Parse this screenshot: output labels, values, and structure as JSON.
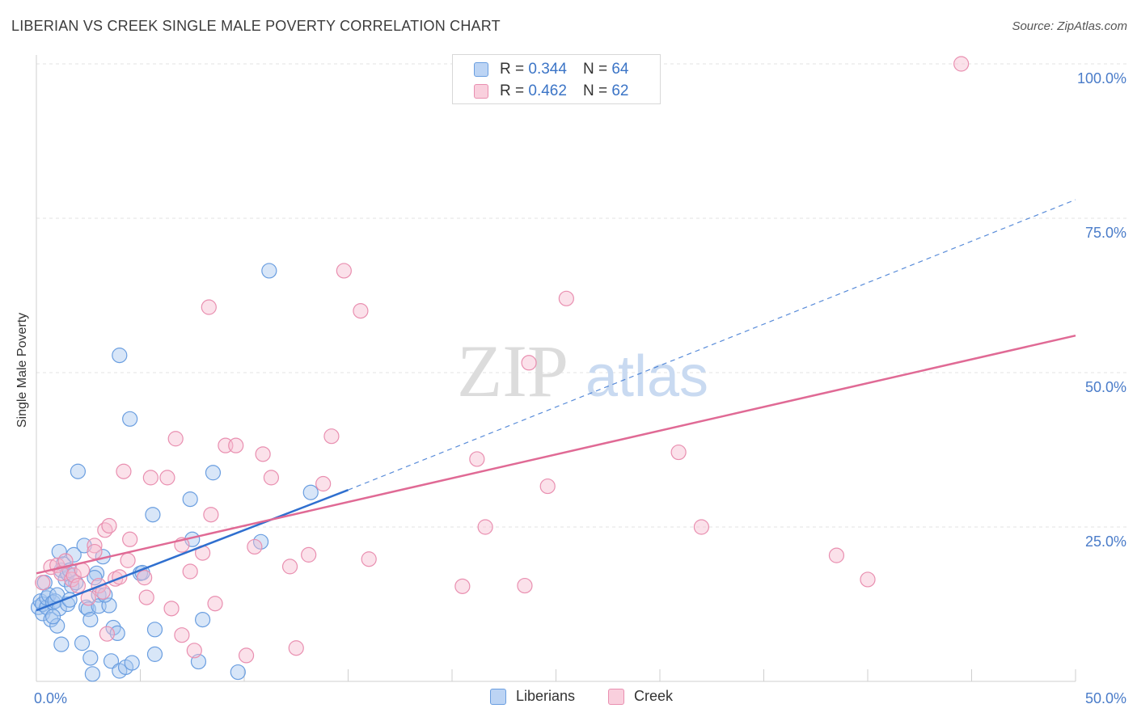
{
  "title": "LIBERIAN VS CREEK SINGLE MALE POVERTY CORRELATION CHART",
  "source": "Source: ZipAtlas.com",
  "watermark": {
    "zip": "ZIP",
    "atlas": "atlas"
  },
  "legend_top": [
    {
      "r_label": "R =",
      "r_value": "0.344",
      "n_label": "N =",
      "n_value": "64"
    },
    {
      "r_label": "R =",
      "r_value": "0.462",
      "n_label": "N =",
      "n_value": "62"
    }
  ],
  "colors": {
    "blue_fill": "#a9c8f0",
    "blue_stroke": "#6a9ee0",
    "blue_line": "#2f6fcf",
    "pink_fill": "#f6bcd0",
    "pink_stroke": "#e98fb0",
    "pink_line": "#e06a95",
    "axis_label": "#4a7cc9",
    "grid": "#e3e3e3"
  },
  "chart_data": {
    "type": "scatter",
    "xlabel": "",
    "ylabel": "Single Male Poverty",
    "xlim": [
      0,
      50
    ],
    "ylim": [
      0,
      100
    ],
    "x_tick_labels": [
      "0.0%",
      "50.0%"
    ],
    "y_tick_labels": [
      "100.0%",
      "75.0%",
      "50.0%",
      "25.0%"
    ],
    "y_ticks": [
      100,
      75,
      50,
      25
    ],
    "grid": true,
    "legend_position": "bottom-center",
    "series": [
      {
        "name": "Liberians",
        "color": "#a9c8f0",
        "points": [
          [
            0.1,
            12.0
          ],
          [
            0.2,
            13.0
          ],
          [
            0.3,
            11.0
          ],
          [
            0.3,
            12.5
          ],
          [
            0.4,
            16.0
          ],
          [
            0.5,
            12.0
          ],
          [
            0.5,
            13.5
          ],
          [
            0.6,
            14.0
          ],
          [
            0.7,
            10.0
          ],
          [
            0.8,
            12.8
          ],
          [
            0.9,
            13.0
          ],
          [
            1.0,
            9.0
          ],
          [
            1.0,
            14.0
          ],
          [
            1.1,
            11.8
          ],
          [
            1.1,
            21.0
          ],
          [
            1.2,
            6.0
          ],
          [
            1.2,
            18.0
          ],
          [
            1.3,
            19.0
          ],
          [
            1.4,
            16.5
          ],
          [
            1.5,
            12.5
          ],
          [
            1.5,
            17.5
          ],
          [
            1.6,
            18.0
          ],
          [
            1.7,
            15.5
          ],
          [
            1.8,
            20.5
          ],
          [
            1.9,
            16.0
          ],
          [
            2.0,
            34.0
          ],
          [
            2.2,
            6.2
          ],
          [
            2.3,
            22.0
          ],
          [
            2.4,
            12.0
          ],
          [
            2.5,
            11.7
          ],
          [
            2.6,
            10.0
          ],
          [
            2.6,
            3.8
          ],
          [
            2.7,
            1.2
          ],
          [
            2.9,
            17.5
          ],
          [
            3.0,
            14.0
          ],
          [
            3.0,
            12.2
          ],
          [
            3.2,
            20.2
          ],
          [
            3.5,
            12.3
          ],
          [
            3.6,
            3.3
          ],
          [
            3.7,
            8.7
          ],
          [
            3.9,
            7.8
          ],
          [
            4.0,
            52.8
          ],
          [
            4.0,
            1.7
          ],
          [
            4.3,
            2.3
          ],
          [
            4.5,
            42.5
          ],
          [
            4.6,
            3.0
          ],
          [
            5.0,
            17.5
          ],
          [
            5.1,
            17.6
          ],
          [
            5.6,
            27.0
          ],
          [
            5.7,
            8.4
          ],
          [
            5.7,
            4.4
          ],
          [
            7.4,
            29.5
          ],
          [
            7.5,
            23.0
          ],
          [
            7.8,
            3.2
          ],
          [
            8.0,
            10.0
          ],
          [
            8.5,
            33.8
          ],
          [
            9.7,
            1.5
          ],
          [
            10.8,
            22.6
          ],
          [
            11.2,
            66.5
          ],
          [
            13.2,
            30.6
          ],
          [
            0.8,
            10.5
          ],
          [
            1.6,
            13.2
          ],
          [
            2.8,
            16.8
          ],
          [
            3.3,
            14.0
          ]
        ]
      },
      {
        "name": "Creek",
        "color": "#f6bcd0",
        "points": [
          [
            0.3,
            16.0
          ],
          [
            0.7,
            18.5
          ],
          [
            1.0,
            18.8
          ],
          [
            1.2,
            17.5
          ],
          [
            1.4,
            19.5
          ],
          [
            1.7,
            16.5
          ],
          [
            1.8,
            17.2
          ],
          [
            2.0,
            15.5
          ],
          [
            2.2,
            18.0
          ],
          [
            2.8,
            22.0
          ],
          [
            2.8,
            21.0
          ],
          [
            3.0,
            15.5
          ],
          [
            3.2,
            14.5
          ],
          [
            3.3,
            24.5
          ],
          [
            3.4,
            7.7
          ],
          [
            3.5,
            25.2
          ],
          [
            3.8,
            16.6
          ],
          [
            4.0,
            16.9
          ],
          [
            4.2,
            34.0
          ],
          [
            4.4,
            19.6
          ],
          [
            4.5,
            23.0
          ],
          [
            5.2,
            16.8
          ],
          [
            5.3,
            13.6
          ],
          [
            5.5,
            33.0
          ],
          [
            6.3,
            33.0
          ],
          [
            6.5,
            11.8
          ],
          [
            6.7,
            39.3
          ],
          [
            7.0,
            22.1
          ],
          [
            7.0,
            7.5
          ],
          [
            7.4,
            17.8
          ],
          [
            7.6,
            5.0
          ],
          [
            8.0,
            20.8
          ],
          [
            8.3,
            60.6
          ],
          [
            8.4,
            27.0
          ],
          [
            8.6,
            12.6
          ],
          [
            9.1,
            38.2
          ],
          [
            9.6,
            38.2
          ],
          [
            10.1,
            4.2
          ],
          [
            10.5,
            21.8
          ],
          [
            10.9,
            36.8
          ],
          [
            11.3,
            33.0
          ],
          [
            12.2,
            18.6
          ],
          [
            12.5,
            5.4
          ],
          [
            13.1,
            20.5
          ],
          [
            13.8,
            32.0
          ],
          [
            14.2,
            39.7
          ],
          [
            14.8,
            66.5
          ],
          [
            15.6,
            60.0
          ],
          [
            16.0,
            19.8
          ],
          [
            20.5,
            15.4
          ],
          [
            21.2,
            36.0
          ],
          [
            21.6,
            25.0
          ],
          [
            23.5,
            15.5
          ],
          [
            23.7,
            51.6
          ],
          [
            24.6,
            31.6
          ],
          [
            25.5,
            62.0
          ],
          [
            30.9,
            37.1
          ],
          [
            32.0,
            25.0
          ],
          [
            38.5,
            20.4
          ],
          [
            40.0,
            16.5
          ],
          [
            44.5,
            100.0
          ],
          [
            2.5,
            13.5
          ]
        ]
      }
    ],
    "trend_lines": [
      {
        "series": "Liberians",
        "x": [
          0,
          15
        ],
        "y": [
          11.5,
          31.0
        ],
        "dashed_extension_to_x": 50,
        "dashed_extension_y": 78.0
      },
      {
        "series": "Creek",
        "x": [
          0,
          50
        ],
        "y": [
          17.5,
          56.0
        ]
      }
    ]
  },
  "legend_bottom": [
    {
      "label": "Liberians"
    },
    {
      "label": "Creek"
    }
  ]
}
